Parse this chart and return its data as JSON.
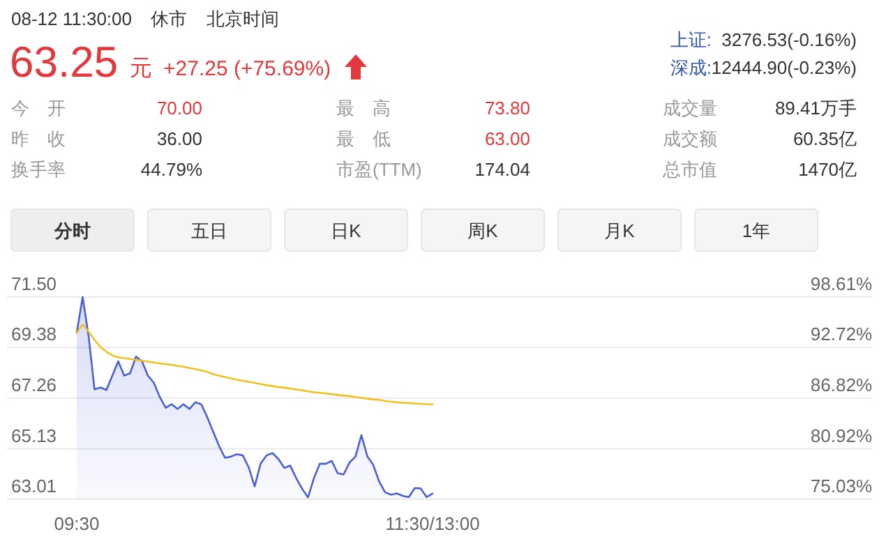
{
  "chart_data": {
    "type": "line",
    "annotations": [
      "08-12 11:30:00",
      "休市",
      "北京时间",
      "63.25",
      "元",
      "+27.25 (+75.69%)",
      "上证:",
      "3276.53(-0.16%)",
      "深成:",
      "12444.90(-0.23%)",
      "今　开",
      "70.00",
      "最　高",
      "73.80",
      "成交量",
      "89.41万手",
      "昨　收",
      "36.00",
      "最　低",
      "63.00",
      "成交额",
      "60.35亿",
      "换手率",
      "44.79%",
      "市盈(TTM)",
      "174.04",
      "总市值",
      "1470亿",
      "分时",
      "五日",
      "日K",
      "周K",
      "月K",
      "1年"
    ],
    "categories": [
      "09:30",
      null,
      null,
      null,
      null,
      null,
      null,
      null,
      null,
      null,
      null,
      null,
      null,
      null,
      null,
      null,
      null,
      null,
      null,
      null,
      null,
      null,
      null,
      null,
      null,
      null,
      null,
      null,
      null,
      null,
      null,
      null,
      null,
      null,
      null,
      null,
      null,
      null,
      null,
      null,
      null,
      null,
      null,
      null,
      null,
      null,
      null,
      null,
      null,
      null,
      null,
      null,
      null,
      null,
      null,
      null,
      null,
      null,
      null,
      null,
      "11:30/13:00",
      null,
      null,
      null,
      null,
      null,
      null,
      null,
      null,
      null,
      null,
      null,
      null,
      null,
      null,
      null,
      null,
      null,
      null,
      null,
      null,
      null,
      null,
      null,
      null,
      null,
      null,
      null,
      null,
      null,
      null,
      null,
      null,
      null,
      null,
      null,
      null,
      null,
      null,
      null,
      null,
      null,
      null,
      null,
      null,
      null,
      null,
      null,
      null,
      null,
      null,
      null,
      null,
      null,
      null,
      null,
      null,
      null,
      null,
      null,
      null
    ],
    "ylim": [
      63.01,
      71.5
    ],
    "yticks": [
      63.01,
      65.13,
      67.26,
      69.38,
      {
        "value": 71.5,
        "label": "71.50"
      }
    ],
    "y2lim": [
      75.03,
      98.61
    ],
    "y2ticks": [
      {
        "value": 75.03,
        "label": "75.03%"
      },
      {
        "value": 80.92,
        "label": "80.92%"
      },
      {
        "value": 86.82,
        "label": "86.82%"
      },
      {
        "value": 92.72,
        "label": "92.72%"
      },
      {
        "value": 98.61,
        "label": "98.61%"
      }
    ],
    "grid": "y",
    "marker": "none",
    "series": [
      {
        "type": "area",
        "color": "#4a5fd6",
        "values": [
          70.0,
          71.5,
          69.85,
          67.62,
          67.7,
          67.6,
          68.2,
          68.8,
          68.2,
          68.3,
          69.0,
          68.8,
          68.2,
          67.9,
          67.3,
          66.85,
          67.0,
          66.8,
          67.0,
          66.8,
          67.08,
          67.0,
          66.46,
          65.85,
          65.25,
          64.75,
          64.8,
          64.9,
          64.85,
          64.35,
          63.55,
          64.5,
          64.85,
          64.95,
          64.7,
          64.33,
          64.42,
          63.9,
          63.45,
          63.09,
          63.9,
          64.5,
          64.5,
          64.62,
          64.1,
          64.05,
          64.55,
          64.8,
          65.7,
          64.81,
          64.45,
          63.75,
          63.3,
          63.2,
          63.25,
          63.15,
          63.1,
          63.48,
          63.46,
          63.1,
          63.25,
          null,
          null,
          null,
          null,
          null,
          null,
          null,
          null,
          null,
          null,
          null,
          null,
          null,
          null,
          null,
          null,
          null,
          null,
          null,
          null,
          null,
          null,
          null,
          null,
          null,
          null,
          null,
          null,
          null,
          null,
          null,
          null,
          null,
          null,
          null,
          null,
          null,
          null,
          null,
          null,
          null,
          null,
          null,
          null,
          null,
          null,
          null,
          null,
          null,
          null,
          null,
          null,
          null,
          null,
          null,
          null,
          null,
          null,
          null,
          null
        ]
      },
      {
        "color": "#f0c020",
        "values": [
          70.0,
          70.35,
          70.05,
          69.7,
          69.4,
          69.2,
          69.05,
          68.97,
          68.93,
          68.9,
          68.86,
          68.83,
          68.79,
          68.75,
          68.71,
          68.68,
          68.65,
          68.61,
          68.57,
          68.52,
          68.47,
          68.42,
          68.36,
          68.26,
          68.2,
          68.14,
          68.08,
          68.03,
          67.98,
          67.94,
          67.89,
          67.85,
          67.8,
          67.76,
          67.72,
          67.69,
          67.66,
          67.62,
          67.58,
          67.54,
          67.5,
          67.48,
          67.45,
          67.42,
          67.39,
          67.36,
          67.34,
          67.3,
          67.27,
          67.23,
          67.2,
          67.18,
          67.14,
          67.1,
          67.08,
          67.06,
          67.05,
          67.03,
          67.02,
          67.0,
          66.99,
          null,
          null,
          null,
          null,
          null,
          null,
          null,
          null,
          null,
          null,
          null,
          null,
          null,
          null,
          null,
          null,
          null,
          null,
          null,
          null,
          null,
          null,
          null,
          null,
          null,
          null,
          null,
          null,
          null,
          null,
          null,
          null,
          null,
          null,
          null,
          null,
          null,
          null,
          null,
          null,
          null,
          null,
          null,
          null,
          null,
          null,
          null,
          null,
          null,
          null,
          null,
          null,
          null,
          null,
          null,
          null,
          null,
          null,
          null,
          null
        ]
      }
    ]
  }
}
